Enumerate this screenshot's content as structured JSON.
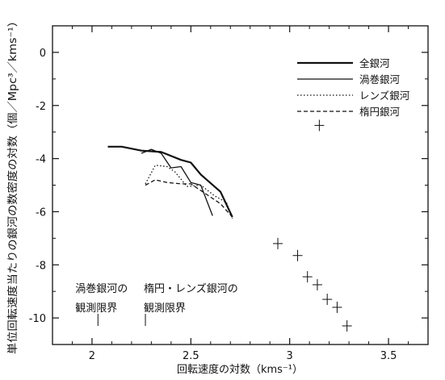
{
  "chart_data": {
    "type": "line",
    "xlabel": "回転速度の対数（kms⁻¹）",
    "ylabel": "単位回転速度当たりの銀河の数密度の対数（個／Mpc³／kms⁻¹）",
    "xlim": [
      1.8,
      3.7
    ],
    "ylim": [
      -11,
      1
    ],
    "x_ticks": [
      2,
      2.5,
      3,
      3.5
    ],
    "x_tick_labels": [
      "2",
      "2.5",
      "3",
      "3.5"
    ],
    "y_ticks": [
      0,
      -2,
      -4,
      -6,
      -8,
      -10
    ],
    "y_tick_labels": [
      "0",
      "-2",
      "-4",
      "-6",
      "-8",
      "-10"
    ],
    "grid": false,
    "legend_position": "top-right",
    "series": [
      {
        "name": "全銀河",
        "style": "solid-thick",
        "x": [
          2.08,
          2.15,
          2.25,
          2.35,
          2.45,
          2.5,
          2.55,
          2.65,
          2.71
        ],
        "y": [
          -3.55,
          -3.55,
          -3.7,
          -3.75,
          -4.05,
          -4.15,
          -4.6,
          -5.25,
          -6.2
        ]
      },
      {
        "name": "渦巻銀河",
        "style": "solid-thin",
        "x": [
          2.25,
          2.3,
          2.35,
          2.4,
          2.45,
          2.5,
          2.55,
          2.61
        ],
        "y": [
          -3.8,
          -3.65,
          -3.8,
          -4.35,
          -4.3,
          -4.9,
          -5.0,
          -6.15
        ]
      },
      {
        "name": "レンズ銀河",
        "style": "dotted",
        "x": [
          2.27,
          2.32,
          2.38,
          2.42,
          2.48,
          2.55,
          2.62,
          2.68,
          2.71
        ],
        "y": [
          -4.95,
          -4.25,
          -4.3,
          -4.5,
          -5.05,
          -5.0,
          -5.4,
          -5.65,
          -6.25
        ]
      },
      {
        "name": "楕円銀河",
        "style": "dashed",
        "x": [
          2.27,
          2.32,
          2.38,
          2.45,
          2.5,
          2.58,
          2.65,
          2.71
        ],
        "y": [
          -5.0,
          -4.8,
          -4.9,
          -4.95,
          -4.95,
          -5.35,
          -5.7,
          -6.2
        ]
      }
    ],
    "scatter_points": {
      "marker": "cross",
      "x": [
        3.15,
        2.94,
        3.04,
        3.09,
        3.14,
        3.19,
        3.24,
        3.29
      ],
      "y": [
        -2.75,
        -7.2,
        -7.65,
        -8.45,
        -8.75,
        -9.3,
        -9.6,
        -10.3
      ]
    },
    "annotations": [
      {
        "lines": [
          "渦巻銀河の",
          "観測限界"
        ],
        "x": 2.03
      },
      {
        "lines": [
          "楕円・レンズ銀河の",
          "観測限界"
        ],
        "x": 2.27
      }
    ]
  }
}
